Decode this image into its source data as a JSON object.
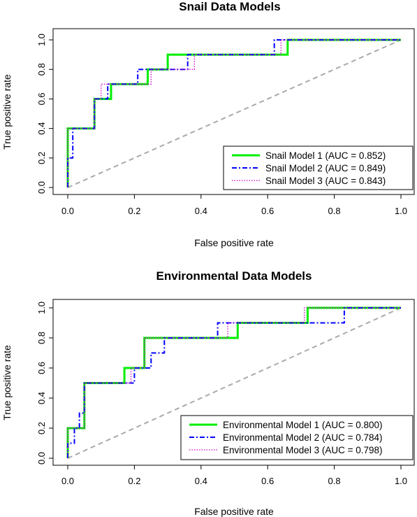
{
  "chart_data": [
    {
      "type": "line",
      "title": "Snail Data Models",
      "xlabel": "False positive rate",
      "ylabel": "True positive rate",
      "xlim": [
        0,
        1
      ],
      "ylim": [
        0,
        1
      ],
      "xticks": [
        "0.0",
        "0.2",
        "0.4",
        "0.6",
        "0.8",
        "1.0"
      ],
      "yticks": [
        "0.0",
        "0.2",
        "0.4",
        "0.6",
        "0.8",
        "1.0"
      ],
      "legend_position": "bottom-right",
      "series": [
        {
          "name": "Snail Model 1",
          "auc_label": "(AUC = 0.852)",
          "color": "#00ee00",
          "dash": "solid",
          "points": [
            [
              0,
              0
            ],
            [
              0,
              0.4
            ],
            [
              0.08,
              0.4
            ],
            [
              0.08,
              0.6
            ],
            [
              0.13,
              0.6
            ],
            [
              0.13,
              0.7
            ],
            [
              0.24,
              0.7
            ],
            [
              0.24,
              0.8
            ],
            [
              0.3,
              0.8
            ],
            [
              0.3,
              0.9
            ],
            [
              0.66,
              0.9
            ],
            [
              0.66,
              1.0
            ],
            [
              1.0,
              1.0
            ]
          ]
        },
        {
          "name": "Snail Model 2",
          "auc_label": "(AUC = 0.849)",
          "color": "#0000ff",
          "dash": "dashdot",
          "points": [
            [
              0,
              0
            ],
            [
              0,
              0.2
            ],
            [
              0.015,
              0.2
            ],
            [
              0.015,
              0.4
            ],
            [
              0.08,
              0.4
            ],
            [
              0.08,
              0.6
            ],
            [
              0.12,
              0.6
            ],
            [
              0.12,
              0.7
            ],
            [
              0.21,
              0.7
            ],
            [
              0.21,
              0.8
            ],
            [
              0.36,
              0.8
            ],
            [
              0.36,
              0.9
            ],
            [
              0.62,
              0.9
            ],
            [
              0.62,
              1.0
            ],
            [
              1.0,
              1.0
            ]
          ]
        },
        {
          "name": "Snail Model 3",
          "auc_label": "(AUC = 0.843)",
          "color": "#cc00cc",
          "dash": "dotted",
          "points": [
            [
              0,
              0
            ],
            [
              0,
              0.4
            ],
            [
              0.08,
              0.4
            ],
            [
              0.08,
              0.6
            ],
            [
              0.1,
              0.6
            ],
            [
              0.1,
              0.7
            ],
            [
              0.25,
              0.7
            ],
            [
              0.25,
              0.8
            ],
            [
              0.38,
              0.8
            ],
            [
              0.38,
              0.9
            ],
            [
              0.64,
              0.9
            ],
            [
              0.64,
              1.0
            ],
            [
              1.0,
              1.0
            ]
          ]
        }
      ]
    },
    {
      "type": "line",
      "title": "Environmental Data Models",
      "xlabel": "False positive rate",
      "ylabel": "True positive rate",
      "xlim": [
        0,
        1
      ],
      "ylim": [
        0,
        1
      ],
      "xticks": [
        "0.0",
        "0.2",
        "0.4",
        "0.6",
        "0.8",
        "1.0"
      ],
      "yticks": [
        "0.0",
        "0.2",
        "0.4",
        "0.6",
        "0.8",
        "1.0"
      ],
      "legend_position": "bottom-right",
      "series": [
        {
          "name": "Environmental Model 1",
          "auc_label": "(AUC = 0.800)",
          "color": "#00ee00",
          "dash": "solid",
          "points": [
            [
              0,
              0
            ],
            [
              0,
              0.2
            ],
            [
              0.05,
              0.2
            ],
            [
              0.05,
              0.5
            ],
            [
              0.17,
              0.5
            ],
            [
              0.17,
              0.6
            ],
            [
              0.23,
              0.6
            ],
            [
              0.23,
              0.8
            ],
            [
              0.51,
              0.8
            ],
            [
              0.51,
              0.9
            ],
            [
              0.72,
              0.9
            ],
            [
              0.72,
              1.0
            ],
            [
              1.0,
              1.0
            ]
          ]
        },
        {
          "name": "Environmental Model 2",
          "auc_label": "(AUC = 0.784)",
          "color": "#0000ff",
          "dash": "dashdot",
          "points": [
            [
              0,
              0
            ],
            [
              0,
              0.1
            ],
            [
              0.02,
              0.1
            ],
            [
              0.02,
              0.2
            ],
            [
              0.035,
              0.2
            ],
            [
              0.035,
              0.3
            ],
            [
              0.05,
              0.3
            ],
            [
              0.05,
              0.5
            ],
            [
              0.2,
              0.5
            ],
            [
              0.2,
              0.6
            ],
            [
              0.25,
              0.6
            ],
            [
              0.25,
              0.7
            ],
            [
              0.29,
              0.7
            ],
            [
              0.29,
              0.8
            ],
            [
              0.45,
              0.8
            ],
            [
              0.45,
              0.9
            ],
            [
              0.83,
              0.9
            ],
            [
              0.83,
              1.0
            ],
            [
              1.0,
              1.0
            ]
          ]
        },
        {
          "name": "Environmental Model 3",
          "auc_label": "(AUC = 0.798)",
          "color": "#cc00cc",
          "dash": "dotted",
          "points": [
            [
              0,
              0
            ],
            [
              0,
              0.2
            ],
            [
              0.05,
              0.2
            ],
            [
              0.05,
              0.5
            ],
            [
              0.19,
              0.5
            ],
            [
              0.19,
              0.6
            ],
            [
              0.23,
              0.6
            ],
            [
              0.23,
              0.8
            ],
            [
              0.48,
              0.8
            ],
            [
              0.48,
              0.9
            ],
            [
              0.71,
              0.9
            ],
            [
              0.71,
              1.0
            ],
            [
              1.0,
              1.0
            ]
          ]
        }
      ]
    }
  ],
  "reference_line": {
    "color": "#aaaaaa",
    "dash": "dashed",
    "from": [
      0,
      0
    ],
    "to": [
      1,
      1
    ]
  }
}
